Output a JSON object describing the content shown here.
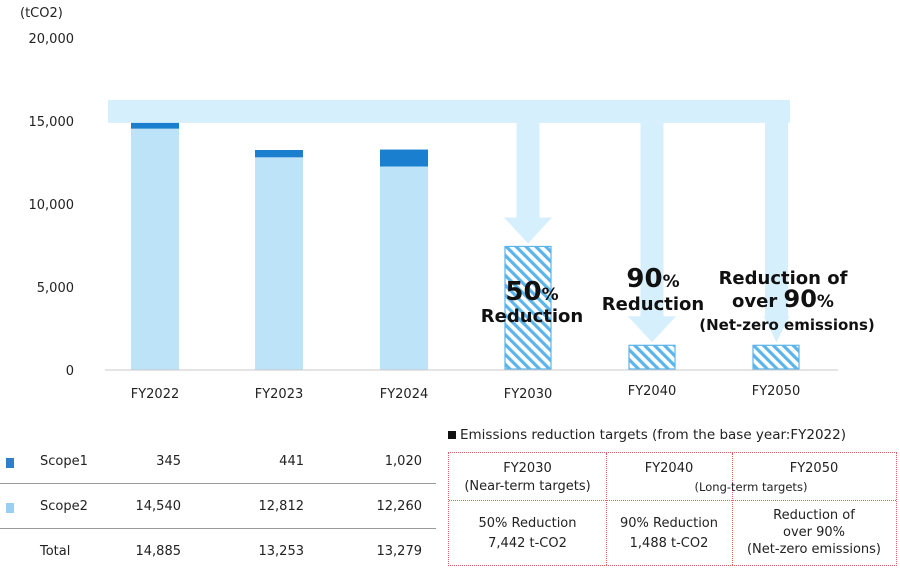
{
  "chart_data": {
    "type": "bar",
    "ylabel": "(tCO2)",
    "ylim": [
      0,
      20000
    ],
    "yticks": [
      "0",
      "5,000",
      "10,000",
      "15,000",
      "20,000"
    ],
    "yticks_values": [
      0,
      5000,
      10000,
      15000,
      20000
    ],
    "categories": [
      "FY2022",
      "FY2023",
      "FY2024",
      "FY2030",
      "FY2040",
      "FY2050"
    ],
    "series": [
      {
        "name": "Scope1",
        "color": "#1a7fcf",
        "values": [
          345,
          441,
          1020,
          null,
          null,
          null
        ]
      },
      {
        "name": "Scope2",
        "color": "#bde3f8",
        "values": [
          14540,
          12812,
          12260,
          null,
          null,
          null
        ]
      }
    ],
    "targets": [
      {
        "category": "FY2030",
        "value": 7442,
        "pct": "50",
        "unit": "%",
        "label": "Reduction"
      },
      {
        "category": "FY2040",
        "value": 1488,
        "pct": "90",
        "unit": "%",
        "label": "Reduction"
      },
      {
        "category": "FY2050",
        "value": 1488,
        "line1": "Reduction of",
        "line2_prefix": "over ",
        "pct": "90",
        "unit": "%",
        "line3": "(Net-zero emissions)"
      }
    ],
    "target_color": "#5bb4ea",
    "arrow_color": "#d6effc"
  },
  "table": {
    "rows": [
      {
        "name": "Scope1",
        "color": "#2f7fc8",
        "values": [
          "345",
          "441",
          "1,020"
        ]
      },
      {
        "name": "Scope2",
        "color": "#9ccfef",
        "values": [
          "14,540",
          "12,812",
          "12,260"
        ]
      },
      {
        "name": "Total",
        "values": [
          "14,885",
          "13,253",
          "13,279"
        ]
      }
    ]
  },
  "targets_box": {
    "title": "Emissions reduction targets (from the base year:FY2022)",
    "headers": [
      {
        "year": "FY2030",
        "sub": "(Near-term targets)"
      },
      {
        "year": "FY2040"
      },
      {
        "year": "FY2050"
      }
    ],
    "long_term_sub": "(Long-term targets)",
    "cells": [
      {
        "line1": "50% Reduction",
        "line2": "7,442 t-CO2"
      },
      {
        "line1": "90% Reduction",
        "line2": "1,488 t-CO2"
      },
      {
        "line1": "Reduction of",
        "line2": "over 90%",
        "line3": "(Net-zero emissions)"
      }
    ]
  }
}
